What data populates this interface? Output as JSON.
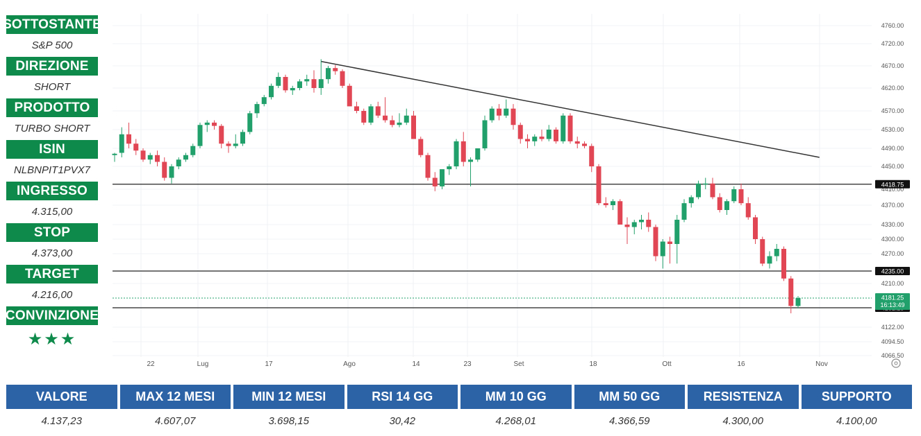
{
  "sidebar": [
    {
      "label": "SOTTOSTANTE",
      "value": "S&P 500"
    },
    {
      "label": "DIREZIONE",
      "value": "SHORT"
    },
    {
      "label": "PRODOTTO",
      "value": "TURBO SHORT"
    },
    {
      "label": "ISIN",
      "value": "NLBNPIT1PVX7"
    },
    {
      "label": "INGRESSO",
      "value": "4.315,00"
    },
    {
      "label": "STOP",
      "value": "4.373,00"
    },
    {
      "label": "TARGET",
      "value": "4.216,00"
    },
    {
      "label": "CONVINZIONE",
      "value": "★★★"
    }
  ],
  "stats": {
    "headers": [
      "VALORE",
      "MAX 12 MESI",
      "MIN 12 MESI",
      "RSI 14 GG",
      "MM 10 GG",
      "MM 50 GG",
      "RESISTENZA",
      "SUPPORTO"
    ],
    "values": [
      "4.137,23",
      "4.607,07",
      "3.698,15",
      "30,42",
      "4.268,01",
      "4.366,59",
      "4.300,00",
      "4.100,00"
    ]
  },
  "colors": {
    "green": "#0e8a4a",
    "blue": "#2c63a6",
    "up": "#22a06b",
    "down": "#e04654"
  },
  "chart_data": {
    "type": "candlestick",
    "y_ticks": [
      "4760.00",
      "4720.00",
      "4670.00",
      "4620.00",
      "4570.00",
      "4530.00",
      "4490.00",
      "4450.00",
      "4410.00",
      "4370.00",
      "4330.00",
      "4300.00",
      "4270.00",
      "4210.00",
      "4122.00",
      "4094.50",
      "4066.50"
    ],
    "x_labels": [
      "22",
      "Lug",
      "17",
      "Ago",
      "14",
      "23",
      "Set",
      "18",
      "Ott",
      "16",
      "Nov"
    ],
    "levels": [
      {
        "value": 4418.75,
        "label": "4418.75"
      },
      {
        "value": 4235.0,
        "label": "4235.00"
      },
      {
        "value": 4161.25,
        "label": "4161.25"
      }
    ],
    "last_price": {
      "value": 4181.25,
      "label": "4181.25",
      "countdown": "16:13:49"
    },
    "trendline": {
      "from": {
        "idx": 29,
        "value": 4680
      },
      "to": {
        "idx": 99,
        "value": 4470
      }
    },
    "candles": [
      [
        4475,
        4480,
        4460,
        4478
      ],
      [
        4480,
        4535,
        4470,
        4520
      ],
      [
        4520,
        4545,
        4490,
        4500
      ],
      [
        4500,
        4510,
        4475,
        4485
      ],
      [
        4485,
        4490,
        4460,
        4465
      ],
      [
        4465,
        4480,
        4455,
        4475
      ],
      [
        4475,
        4485,
        4450,
        4460
      ],
      [
        4460,
        4470,
        4425,
        4430
      ],
      [
        4430,
        4455,
        4420,
        4450
      ],
      [
        4450,
        4470,
        4445,
        4465
      ],
      [
        4465,
        4480,
        4460,
        4475
      ],
      [
        4475,
        4500,
        4470,
        4495
      ],
      [
        4495,
        4545,
        4490,
        4540
      ],
      [
        4540,
        4550,
        4525,
        4545
      ],
      [
        4545,
        4550,
        4530,
        4538
      ],
      [
        4538,
        4542,
        4490,
        4500
      ],
      [
        4500,
        4505,
        4480,
        4495
      ],
      [
        4495,
        4520,
        4490,
        4500
      ],
      [
        4500,
        4530,
        4495,
        4525
      ],
      [
        4525,
        4570,
        4520,
        4565
      ],
      [
        4565,
        4590,
        4555,
        4585
      ],
      [
        4585,
        4605,
        4580,
        4600
      ],
      [
        4600,
        4630,
        4595,
        4625
      ],
      [
        4625,
        4655,
        4620,
        4645
      ],
      [
        4645,
        4650,
        4610,
        4615
      ],
      [
        4615,
        4625,
        4605,
        4620
      ],
      [
        4620,
        4640,
        4615,
        4635
      ],
      [
        4635,
        4650,
        4625,
        4640
      ],
      [
        4640,
        4660,
        4610,
        4620
      ],
      [
        4620,
        4685,
        4605,
        4640
      ],
      [
        4640,
        4670,
        4630,
        4665
      ],
      [
        4665,
        4672,
        4650,
        4658
      ],
      [
        4658,
        4662,
        4620,
        4625
      ],
      [
        4625,
        4630,
        4580,
        4580
      ],
      [
        4580,
        4590,
        4565,
        4570
      ],
      [
        4570,
        4575,
        4540,
        4545
      ],
      [
        4545,
        4585,
        4540,
        4580
      ],
      [
        4580,
        4590,
        4555,
        4560
      ],
      [
        4560,
        4600,
        4545,
        4550
      ],
      [
        4550,
        4560,
        4535,
        4540
      ],
      [
        4540,
        4565,
        4535,
        4545
      ],
      [
        4545,
        4575,
        4540,
        4560
      ],
      [
        4560,
        4570,
        4510,
        4510
      ],
      [
        4510,
        4515,
        4470,
        4475
      ],
      [
        4475,
        4480,
        4425,
        4430
      ],
      [
        4430,
        4440,
        4405,
        4415
      ],
      [
        4415,
        4445,
        4410,
        4445
      ],
      [
        4445,
        4455,
        4435,
        4450
      ],
      [
        4450,
        4510,
        4445,
        4505
      ],
      [
        4505,
        4525,
        4450,
        4460
      ],
      [
        4460,
        4470,
        4415,
        4465
      ],
      [
        4465,
        4490,
        4460,
        4490
      ],
      [
        4490,
        4560,
        4485,
        4550
      ],
      [
        4550,
        4580,
        4545,
        4575
      ],
      [
        4575,
        4585,
        4550,
        4560
      ],
      [
        4560,
        4595,
        4555,
        4575
      ],
      [
        4575,
        4585,
        4530,
        4540
      ],
      [
        4540,
        4545,
        4500,
        4510
      ],
      [
        4510,
        4520,
        4490,
        4505
      ],
      [
        4505,
        4520,
        4495,
        4515
      ],
      [
        4515,
        4530,
        4505,
        4510
      ],
      [
        4510,
        4540,
        4505,
        4530
      ],
      [
        4530,
        4535,
        4500,
        4505
      ],
      [
        4505,
        4565,
        4500,
        4560
      ],
      [
        4560,
        4565,
        4500,
        4505
      ],
      [
        4505,
        4515,
        4490,
        4500
      ],
      [
        4500,
        4505,
        4490,
        4495
      ],
      [
        4495,
        4500,
        4440,
        4450
      ],
      [
        4450,
        4455,
        4370,
        4375
      ],
      [
        4375,
        4390,
        4365,
        4370
      ],
      [
        4370,
        4385,
        4360,
        4380
      ],
      [
        4380,
        4385,
        4330,
        4330
      ],
      [
        4330,
        4345,
        4290,
        4325
      ],
      [
        4325,
        4340,
        4310,
        4335
      ],
      [
        4335,
        4350,
        4320,
        4340
      ],
      [
        4340,
        4355,
        4315,
        4325
      ],
      [
        4325,
        4330,
        4255,
        4265
      ],
      [
        4265,
        4300,
        4240,
        4295
      ],
      [
        4295,
        4305,
        4250,
        4290
      ],
      [
        4290,
        4350,
        4250,
        4340
      ],
      [
        4340,
        4385,
        4335,
        4375
      ],
      [
        4375,
        4395,
        4365,
        4390
      ],
      [
        4390,
        4425,
        4385,
        4420
      ],
      [
        4420,
        4430,
        4410,
        4420
      ],
      [
        4420,
        4430,
        4385,
        4390
      ],
      [
        4390,
        4400,
        4355,
        4360
      ],
      [
        4360,
        4385,
        4350,
        4380
      ],
      [
        4380,
        4415,
        4375,
        4410
      ],
      [
        4410,
        4420,
        4370,
        4375
      ],
      [
        4375,
        4390,
        4340,
        4345
      ],
      [
        4345,
        4350,
        4290,
        4300
      ],
      [
        4300,
        4305,
        4245,
        4250
      ],
      [
        4250,
        4275,
        4240,
        4265
      ],
      [
        4265,
        4290,
        4255,
        4280
      ],
      [
        4280,
        4285,
        4215,
        4220
      ],
      [
        4220,
        4225,
        4150,
        4165
      ],
      [
        4165,
        4185,
        4160,
        4181.25
      ]
    ]
  }
}
